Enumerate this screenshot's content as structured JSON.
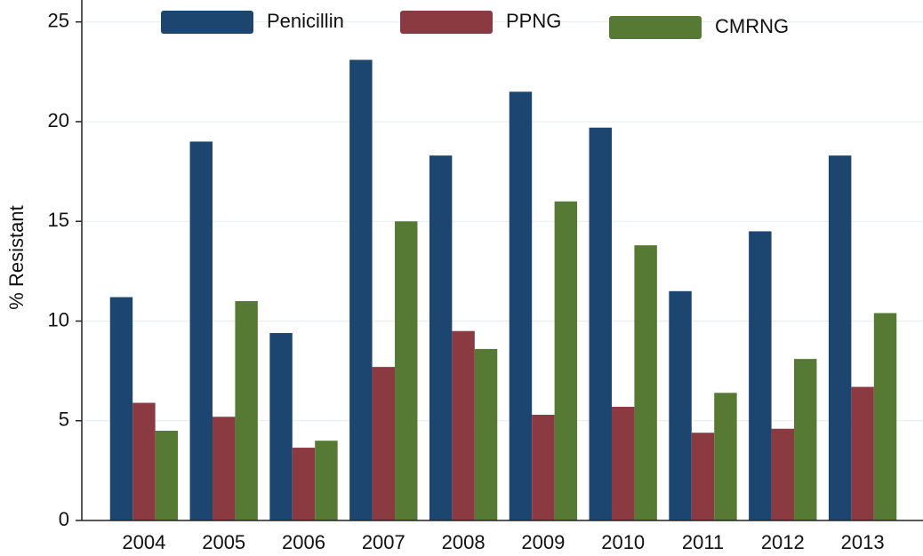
{
  "chart_data": {
    "type": "bar",
    "y_label": "% Resistant",
    "categories": [
      "2004",
      "2005",
      "2006",
      "2007",
      "2008",
      "2009",
      "2010",
      "2011",
      "2012",
      "2013"
    ],
    "series": [
      {
        "name": "Penicillin",
        "color": "#1c4670",
        "values": [
          11.2,
          19.0,
          9.4,
          23.1,
          18.3,
          21.5,
          19.7,
          11.5,
          14.5,
          18.3
        ]
      },
      {
        "name": "PPNG",
        "color": "#8b3a42",
        "values": [
          5.9,
          5.2,
          3.65,
          7.7,
          9.5,
          5.3,
          5.7,
          4.4,
          4.6,
          6.7
        ]
      },
      {
        "name": "CMRNG",
        "color": "#567a34",
        "values": [
          4.5,
          11.0,
          4.0,
          15.0,
          8.6,
          16.0,
          13.8,
          6.4,
          8.1,
          10.4
        ]
      }
    ],
    "ylim": [
      0,
      26.1
    ],
    "yticks": [
      0,
      5,
      10,
      15,
      20,
      25
    ],
    "grid": true
  }
}
